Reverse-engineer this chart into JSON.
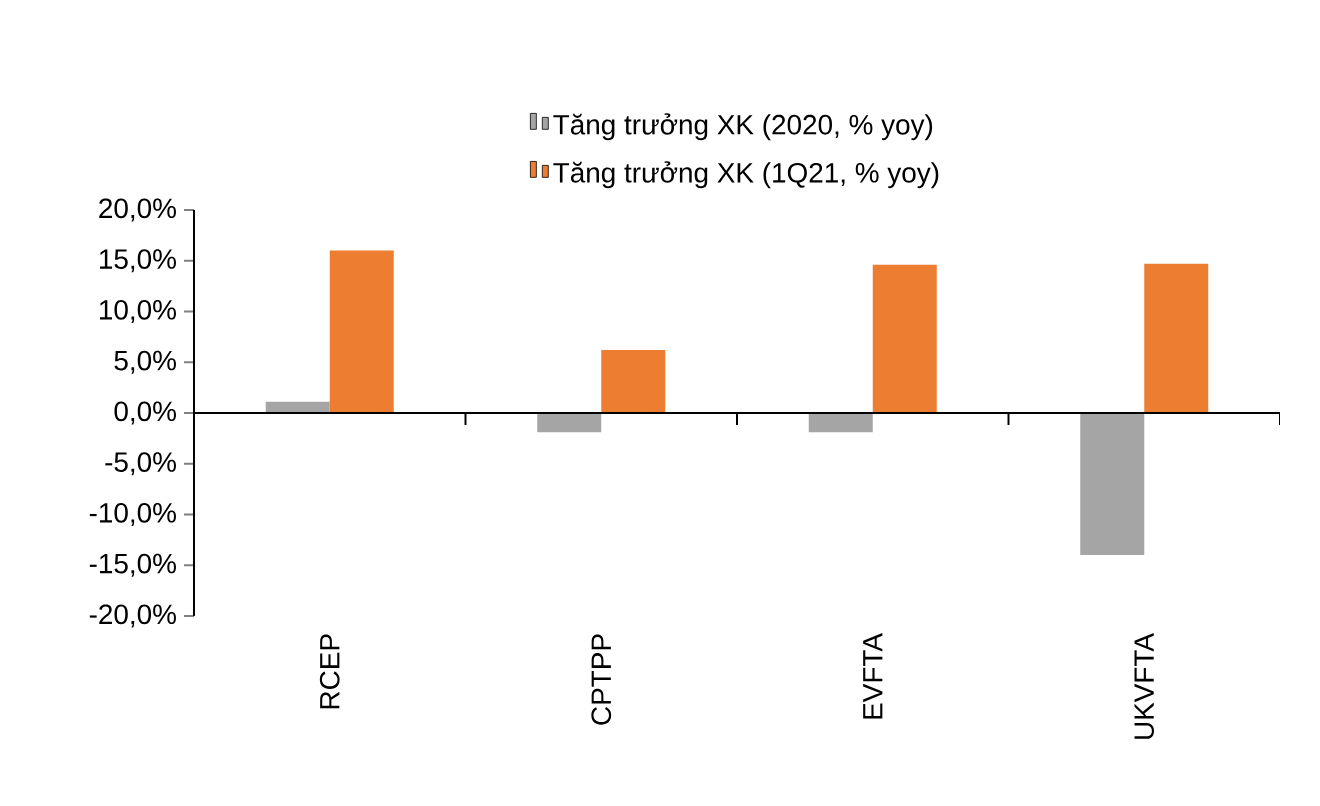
{
  "chart_data": {
    "type": "bar",
    "categories": [
      "RCEP",
      "CPTPP",
      "EVFTA",
      "UKVFTA"
    ],
    "series": [
      {
        "name": "Tăng trưởng XK (2020, % yoy)",
        "color": "#a5a5a5",
        "values": [
          1.1,
          -1.9,
          -1.9,
          -14.0
        ]
      },
      {
        "name": "Tăng trưởng XK (1Q21, % yoy)",
        "color": "#ed7d31",
        "values": [
          16.0,
          6.2,
          14.6,
          14.7
        ]
      }
    ],
    "ylim": [
      -20,
      20
    ],
    "yticks": [
      {
        "value": -20,
        "label": "-20,0%"
      },
      {
        "value": -15,
        "label": "-15,0%"
      },
      {
        "value": -10,
        "label": "-10,0%"
      },
      {
        "value": -5,
        "label": "-5,0%"
      },
      {
        "value": 0,
        "label": "0,0%"
      },
      {
        "value": 5,
        "label": "5,0%"
      },
      {
        "value": 10,
        "label": "10,0%"
      },
      {
        "value": 15,
        "label": "15,0%"
      },
      {
        "value": 20,
        "label": "20,0%"
      }
    ],
    "legend": "top"
  }
}
